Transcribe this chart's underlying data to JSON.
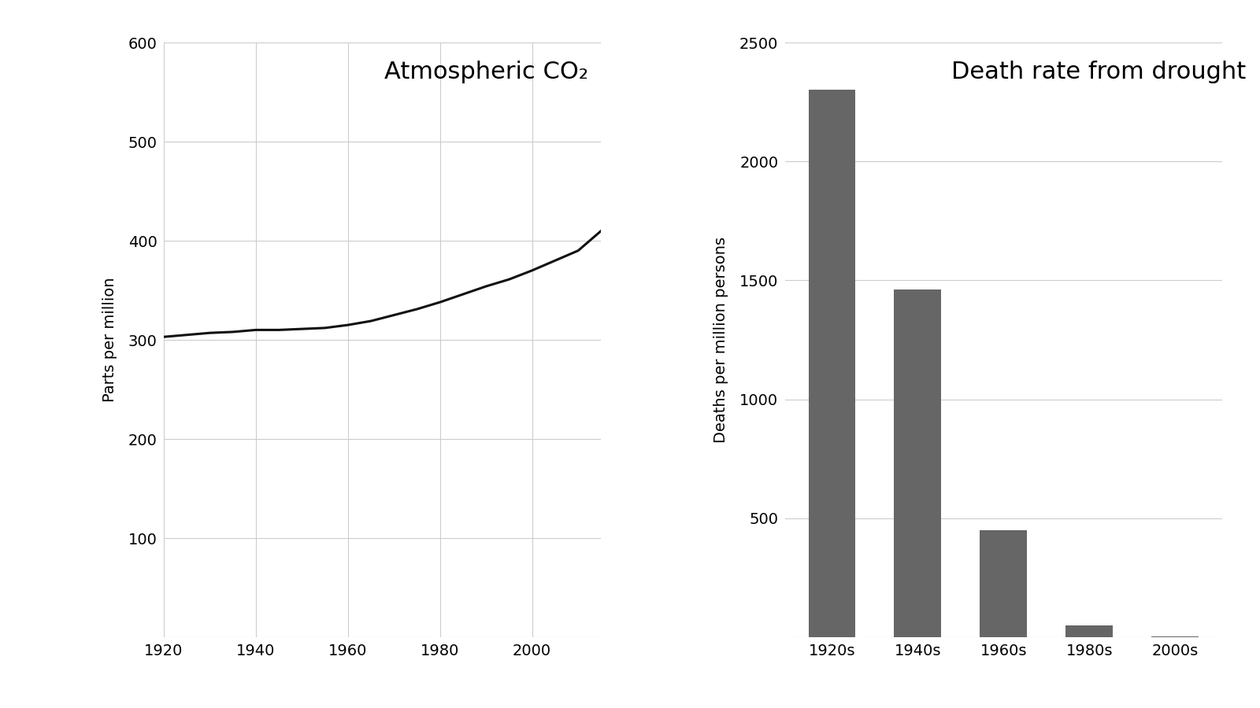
{
  "co2_title": "Atmospheric CO₂",
  "co2_ylabel": "Parts per million",
  "co2_years": [
    1920,
    1925,
    1930,
    1935,
    1940,
    1945,
    1950,
    1955,
    1960,
    1965,
    1970,
    1975,
    1980,
    1985,
    1990,
    1995,
    2000,
    2005,
    2010,
    2015
  ],
  "co2_values": [
    303,
    305,
    307,
    308,
    310,
    310,
    311,
    312,
    315,
    319,
    325,
    331,
    338,
    346,
    354,
    361,
    370,
    380,
    390,
    410
  ],
  "co2_xlim": [
    1920,
    2015
  ],
  "co2_ylim": [
    0,
    600
  ],
  "co2_yticks": [
    0,
    100,
    200,
    300,
    400,
    500,
    600
  ],
  "co2_xticks": [
    1920,
    1940,
    1960,
    1980,
    2000
  ],
  "drought_title": "Death rate from drought",
  "drought_ylabel": "Deaths per million persons",
  "drought_categories": [
    "1920s",
    "1940s",
    "1960s",
    "1980s",
    "2000s"
  ],
  "drought_values": [
    2300,
    1460,
    450,
    50,
    3
  ],
  "drought_ylim": [
    0,
    2500
  ],
  "drought_yticks": [
    0,
    500,
    1000,
    1500,
    2000,
    2500
  ],
  "bar_color": "#666666",
  "line_color": "#111111",
  "background_color": "#ffffff",
  "grid_color": "#cccccc",
  "title_fontsize": 22,
  "label_fontsize": 14,
  "tick_fontsize": 14
}
